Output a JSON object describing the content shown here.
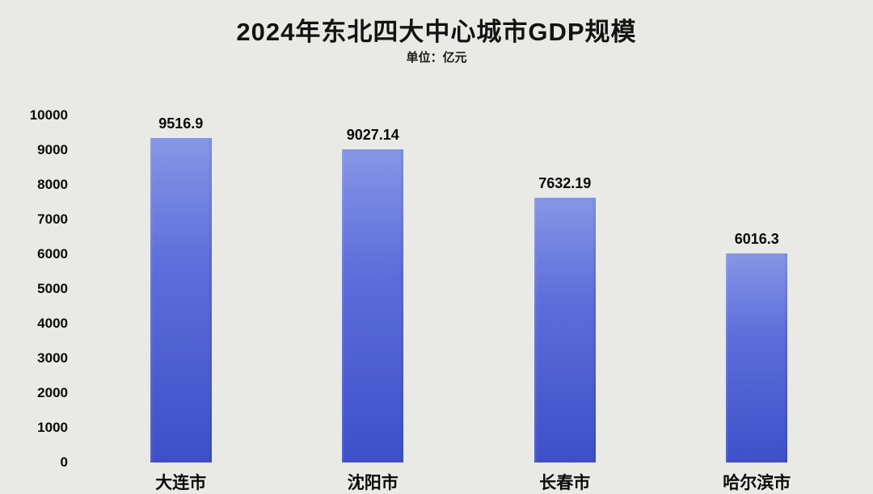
{
  "title": "2024年东北四大中心城市GDP规模",
  "subtitle": "单位：亿元",
  "chart_data": {
    "type": "bar",
    "title": "2024年东北四大中心城市GDP规模",
    "unit_label": "单位：亿元",
    "categories": [
      "大连市",
      "沈阳市",
      "长春市",
      "哈尔滨市"
    ],
    "values": [
      9516.9,
      9027.14,
      7632.19,
      6016.3
    ],
    "value_labels": [
      "9516.9",
      "9027.14",
      "7632.19",
      "6016.3"
    ],
    "xlabel": "",
    "ylabel": "",
    "ylim": [
      0,
      10000
    ],
    "ytick_interval": 1000,
    "yticks": [
      0,
      1000,
      2000,
      3000,
      4000,
      5000,
      6000,
      7000,
      8000,
      9000,
      10000
    ],
    "grid": false,
    "legend": false,
    "background_color": "#e9e9e6",
    "bar_color_top": "#8696e6",
    "bar_color_bottom": "#3e50c8",
    "text_color": "#0a0a0a"
  }
}
